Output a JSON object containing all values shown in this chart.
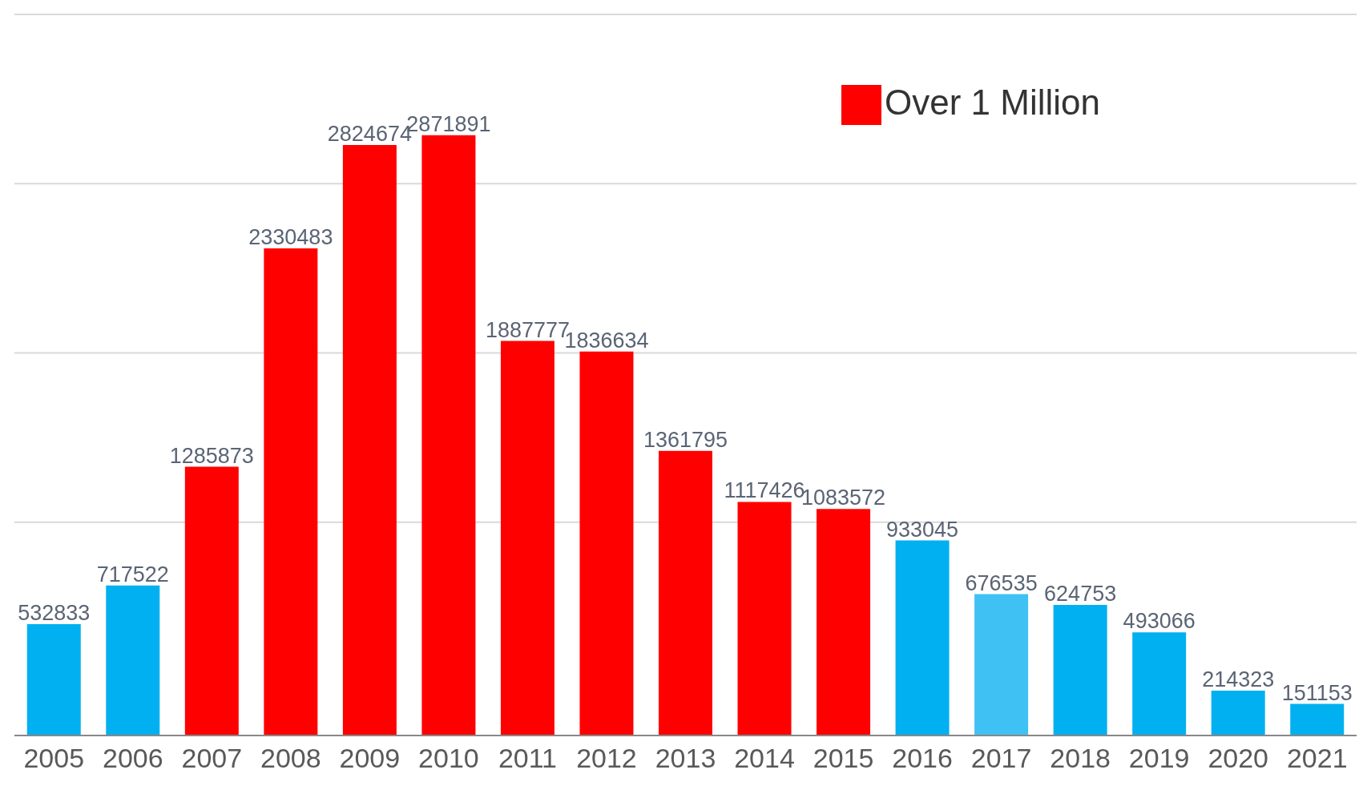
{
  "chart_data": {
    "type": "bar",
    "categories": [
      "2005",
      "2006",
      "2007",
      "2008",
      "2009",
      "2010",
      "2011",
      "2012",
      "2013",
      "2014",
      "2015",
      "2016",
      "2017",
      "2018",
      "2019",
      "2020",
      "2021"
    ],
    "series": [
      {
        "name": "Over 1 Million",
        "color": "#ff0000",
        "values": [
          532833,
          717522,
          1285873,
          2330483,
          2824674,
          2871891,
          1887777,
          1836634,
          1361795,
          1117426,
          1083572,
          933045,
          676535,
          624753,
          493066,
          214323,
          151153
        ],
        "colors": [
          "#00b0f0",
          "#00b0f0",
          "#ff0000",
          "#ff0000",
          "#ff0000",
          "#ff0000",
          "#ff0000",
          "#ff0000",
          "#ff0000",
          "#ff0000",
          "#ff0000",
          "#00b0f0",
          "#3fc1f3",
          "#00b0f0",
          "#00b0f0",
          "#00b0f0",
          "#00b0f0"
        ]
      }
    ],
    "grid": "y",
    "legend": "top right",
    "tick_labels": "x",
    "data_labels": true
  }
}
